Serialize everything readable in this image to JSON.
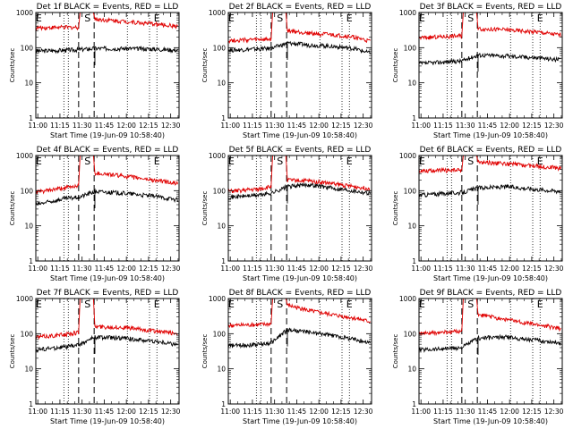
{
  "figure": {
    "x_axis_label": "Start Time (19-Jun-09 10:58:40)",
    "y_axis_label": "Counts/sec"
  },
  "chart_data": [
    {
      "type": "line",
      "title": "Det 1f BLACK = Events, RED = LLD",
      "xlabel": "Start Time (19-Jun-09 10:58:40)",
      "ylabel": "Counts/sec",
      "xlim_minutes": [
        0,
        97
      ],
      "x_ticks": [
        "11:00",
        "11:15",
        "11:30",
        "11:45",
        "12:00",
        "12:15",
        "12:30"
      ],
      "ylim": [
        1,
        1000
      ],
      "y_scale": "log",
      "y_ticks": [
        "1",
        "10",
        "100",
        "1000"
      ],
      "markers": [
        {
          "label": "E",
          "x": 2
        },
        {
          "label": "S",
          "x": 35
        },
        {
          "label": "E",
          "x": 82
        }
      ],
      "series": [
        {
          "color": "#000000",
          "points": [
            [
              0,
              80
            ],
            [
              20,
              85
            ],
            [
              29,
              88
            ],
            [
              40,
              95
            ],
            [
              60,
              95
            ],
            [
              80,
              92
            ],
            [
              96,
              85
            ]
          ]
        },
        {
          "color": "#e00000",
          "points": [
            [
              0,
              370
            ],
            [
              20,
              380
            ],
            [
              29,
              380
            ],
            [
              30,
              1000
            ],
            [
              39,
              1000
            ],
            [
              40,
              650
            ],
            [
              60,
              560
            ],
            [
              80,
              470
            ],
            [
              96,
              410
            ]
          ]
        }
      ]
    },
    {
      "type": "line",
      "title": "Det 2f BLACK = Events, RED = LLD",
      "xlabel": "Start Time (19-Jun-09 10:58:40)",
      "ylabel": "Counts/sec",
      "xlim_minutes": [
        0,
        97
      ],
      "x_ticks": [
        "11:00",
        "11:15",
        "11:30",
        "11:45",
        "12:00",
        "12:15",
        "12:30"
      ],
      "ylim": [
        1,
        1000
      ],
      "y_scale": "log",
      "y_ticks": [
        "1",
        "10",
        "100",
        "1000"
      ],
      "markers": [
        {
          "label": "E",
          "x": 2
        },
        {
          "label": "S",
          "x": 35
        },
        {
          "label": "E",
          "x": 82
        }
      ],
      "series": [
        {
          "color": "#000000",
          "points": [
            [
              0,
              85
            ],
            [
              20,
              92
            ],
            [
              29,
              95
            ],
            [
              40,
              135
            ],
            [
              55,
              120
            ],
            [
              70,
              110
            ],
            [
              85,
              95
            ],
            [
              96,
              70
            ]
          ]
        },
        {
          "color": "#e00000",
          "points": [
            [
              0,
              160
            ],
            [
              20,
              170
            ],
            [
              29,
              170
            ],
            [
              30,
              1000
            ],
            [
              39,
              1000
            ],
            [
              40,
              300
            ],
            [
              55,
              260
            ],
            [
              70,
              230
            ],
            [
              85,
              200
            ],
            [
              96,
              150
            ]
          ]
        }
      ]
    },
    {
      "type": "line",
      "title": "Det 3f BLACK = Events, RED = LLD",
      "xlabel": "Start Time (19-Jun-09 10:58:40)",
      "ylabel": "Counts/sec",
      "xlim_minutes": [
        0,
        97
      ],
      "x_ticks": [
        "11:00",
        "11:15",
        "11:30",
        "11:45",
        "12:00",
        "12:15",
        "12:30"
      ],
      "ylim": [
        1,
        1000
      ],
      "y_scale": "log",
      "y_ticks": [
        "1",
        "10",
        "100",
        "1000"
      ],
      "markers": [
        {
          "label": "E",
          "x": 2
        },
        {
          "label": "S",
          "x": 35
        },
        {
          "label": "E",
          "x": 82
        }
      ],
      "series": [
        {
          "color": "#000000",
          "points": [
            [
              0,
              35
            ],
            [
              20,
              40
            ],
            [
              29,
              42
            ],
            [
              40,
              62
            ],
            [
              60,
              58
            ],
            [
              80,
              52
            ],
            [
              96,
              45
            ]
          ]
        },
        {
          "color": "#e00000",
          "points": [
            [
              0,
              190
            ],
            [
              20,
              210
            ],
            [
              29,
              220
            ],
            [
              30,
              1000
            ],
            [
              39,
              1000
            ],
            [
              40,
              350
            ],
            [
              60,
              320
            ],
            [
              80,
              280
            ],
            [
              96,
              230
            ]
          ]
        }
      ]
    },
    {
      "type": "line",
      "title": "Det 4f BLACK = Events, RED = LLD",
      "xlabel": "Start Time (19-Jun-09 10:58:40)",
      "ylabel": "Counts/sec",
      "xlim_minutes": [
        0,
        97
      ],
      "x_ticks": [
        "11:00",
        "11:15",
        "11:30",
        "11:45",
        "12:00",
        "12:15",
        "12:30"
      ],
      "ylim": [
        1,
        1000
      ],
      "y_scale": "log",
      "y_ticks": [
        "1",
        "10",
        "100",
        "1000"
      ],
      "markers": [
        {
          "label": "E",
          "x": 2
        },
        {
          "label": "S",
          "x": 35
        },
        {
          "label": "E",
          "x": 82
        }
      ],
      "series": [
        {
          "color": "#000000",
          "points": [
            [
              0,
              40
            ],
            [
              20,
              60
            ],
            [
              29,
              65
            ],
            [
              40,
              95
            ],
            [
              60,
              85
            ],
            [
              80,
              70
            ],
            [
              96,
              55
            ]
          ]
        },
        {
          "color": "#e00000",
          "points": [
            [
              0,
              90
            ],
            [
              20,
              120
            ],
            [
              29,
              140
            ],
            [
              30,
              1000
            ],
            [
              39,
              1000
            ],
            [
              40,
              320
            ],
            [
              60,
              260
            ],
            [
              80,
              200
            ],
            [
              96,
              160
            ]
          ]
        }
      ]
    },
    {
      "type": "line",
      "title": "Det 5f BLACK = Events, RED = LLD",
      "xlabel": "Start Time (19-Jun-09 10:58:40)",
      "ylabel": "Counts/sec",
      "xlim_minutes": [
        0,
        97
      ],
      "x_ticks": [
        "11:00",
        "11:15",
        "11:30",
        "11:45",
        "12:00",
        "12:15",
        "12:30"
      ],
      "ylim": [
        1,
        1000
      ],
      "y_scale": "log",
      "y_ticks": [
        "1",
        "10",
        "100",
        "1000"
      ],
      "markers": [
        {
          "label": "E",
          "x": 2
        },
        {
          "label": "S",
          "x": 35
        },
        {
          "label": "E",
          "x": 82
        }
      ],
      "series": [
        {
          "color": "#000000",
          "points": [
            [
              0,
              65
            ],
            [
              20,
              75
            ],
            [
              29,
              85
            ],
            [
              40,
              130
            ],
            [
              55,
              150
            ],
            [
              70,
              120
            ],
            [
              85,
              100
            ],
            [
              96,
              85
            ]
          ]
        },
        {
          "color": "#e00000",
          "points": [
            [
              0,
              95
            ],
            [
              20,
              110
            ],
            [
              29,
              130
            ],
            [
              30,
              1000
            ],
            [
              39,
              1000
            ],
            [
              40,
              200
            ],
            [
              55,
              190
            ],
            [
              70,
              160
            ],
            [
              85,
              130
            ],
            [
              96,
              115
            ]
          ]
        }
      ]
    },
    {
      "type": "line",
      "title": "Det 6f BLACK = Events, RED = LLD",
      "xlabel": "Start Time (19-Jun-09 10:58:40)",
      "ylabel": "Counts/sec",
      "xlim_minutes": [
        0,
        97
      ],
      "x_ticks": [
        "11:00",
        "11:15",
        "11:30",
        "11:45",
        "12:00",
        "12:15",
        "12:30"
      ],
      "ylim": [
        1,
        1000
      ],
      "y_scale": "log",
      "y_ticks": [
        "1",
        "10",
        "100",
        "1000"
      ],
      "markers": [
        {
          "label": "E",
          "x": 2
        },
        {
          "label": "S",
          "x": 35
        },
        {
          "label": "E",
          "x": 82
        }
      ],
      "series": [
        {
          "color": "#000000",
          "points": [
            [
              0,
              75
            ],
            [
              20,
              85
            ],
            [
              29,
              88
            ],
            [
              40,
              120
            ],
            [
              60,
              130
            ],
            [
              80,
              110
            ],
            [
              96,
              95
            ]
          ]
        },
        {
          "color": "#e00000",
          "points": [
            [
              0,
              370
            ],
            [
              20,
              380
            ],
            [
              29,
              380
            ],
            [
              30,
              1000
            ],
            [
              39,
              1000
            ],
            [
              40,
              650
            ],
            [
              60,
              580
            ],
            [
              80,
              500
            ],
            [
              96,
              440
            ]
          ]
        }
      ]
    },
    {
      "type": "line",
      "title": "Det 7f BLACK = Events, RED = LLD",
      "xlabel": "Start Time (19-Jun-09 10:58:40)",
      "ylabel": "Counts/sec",
      "xlim_minutes": [
        0,
        97
      ],
      "x_ticks": [
        "11:00",
        "11:15",
        "11:30",
        "11:45",
        "12:00",
        "12:15",
        "12:30"
      ],
      "ylim": [
        1,
        1000
      ],
      "y_scale": "log",
      "y_ticks": [
        "1",
        "10",
        "100",
        "1000"
      ],
      "markers": [
        {
          "label": "E",
          "x": 2
        },
        {
          "label": "S",
          "x": 35
        },
        {
          "label": "E",
          "x": 82
        }
      ],
      "series": [
        {
          "color": "#000000",
          "points": [
            [
              0,
              35
            ],
            [
              20,
              42
            ],
            [
              29,
              48
            ],
            [
              40,
              80
            ],
            [
              60,
              75
            ],
            [
              80,
              60
            ],
            [
              96,
              50
            ]
          ]
        },
        {
          "color": "#e00000",
          "points": [
            [
              0,
              80
            ],
            [
              20,
              95
            ],
            [
              29,
              110
            ],
            [
              30,
              1000
            ],
            [
              39,
              1000
            ],
            [
              40,
              160
            ],
            [
              60,
              150
            ],
            [
              80,
              120
            ],
            [
              96,
              100
            ]
          ]
        }
      ]
    },
    {
      "type": "line",
      "title": "Det 8f BLACK = Events, RED = LLD",
      "xlabel": "Start Time (19-Jun-09 10:58:40)",
      "ylabel": "Counts/sec",
      "xlim_minutes": [
        0,
        97
      ],
      "x_ticks": [
        "11:00",
        "11:15",
        "11:30",
        "11:45",
        "12:00",
        "12:15",
        "12:30"
      ],
      "ylim": [
        1,
        1000
      ],
      "y_scale": "log",
      "y_ticks": [
        "1",
        "10",
        "100",
        "1000"
      ],
      "markers": [
        {
          "label": "E",
          "x": 2
        },
        {
          "label": "S",
          "x": 35
        },
        {
          "label": "E",
          "x": 82
        }
      ],
      "series": [
        {
          "color": "#000000",
          "points": [
            [
              0,
              45
            ],
            [
              20,
              50
            ],
            [
              29,
              55
            ],
            [
              40,
              130
            ],
            [
              55,
              110
            ],
            [
              70,
              90
            ],
            [
              85,
              70
            ],
            [
              96,
              55
            ]
          ]
        },
        {
          "color": "#e00000",
          "points": [
            [
              0,
              170
            ],
            [
              20,
              180
            ],
            [
              29,
              190
            ],
            [
              30,
              1000
            ],
            [
              39,
              1000
            ],
            [
              40,
              650
            ],
            [
              55,
              450
            ],
            [
              70,
              350
            ],
            [
              85,
              280
            ],
            [
              96,
              220
            ]
          ]
        }
      ]
    },
    {
      "type": "line",
      "title": "Det 9f BLACK = Events, RED = LLD",
      "xlabel": "Start Time (19-Jun-09 10:58:40)",
      "ylabel": "Counts/sec",
      "xlim_minutes": [
        0,
        97
      ],
      "x_ticks": [
        "11:00",
        "11:15",
        "11:30",
        "11:45",
        "12:00",
        "12:15",
        "12:30"
      ],
      "ylim": [
        1,
        1000
      ],
      "y_scale": "log",
      "y_ticks": [
        "1",
        "10",
        "100",
        "1000"
      ],
      "markers": [
        {
          "label": "E",
          "x": 2
        },
        {
          "label": "S",
          "x": 35
        },
        {
          "label": "E",
          "x": 82
        }
      ],
      "series": [
        {
          "color": "#000000",
          "points": [
            [
              0,
              35
            ],
            [
              20,
              38
            ],
            [
              29,
              40
            ],
            [
              40,
              75
            ],
            [
              60,
              80
            ],
            [
              80,
              65
            ],
            [
              96,
              55
            ]
          ]
        },
        {
          "color": "#e00000",
          "points": [
            [
              0,
              100
            ],
            [
              20,
              110
            ],
            [
              29,
              120
            ],
            [
              30,
              1000
            ],
            [
              39,
              1000
            ],
            [
              40,
              350
            ],
            [
              60,
              250
            ],
            [
              80,
              180
            ],
            [
              96,
              140
            ]
          ]
        }
      ]
    }
  ]
}
